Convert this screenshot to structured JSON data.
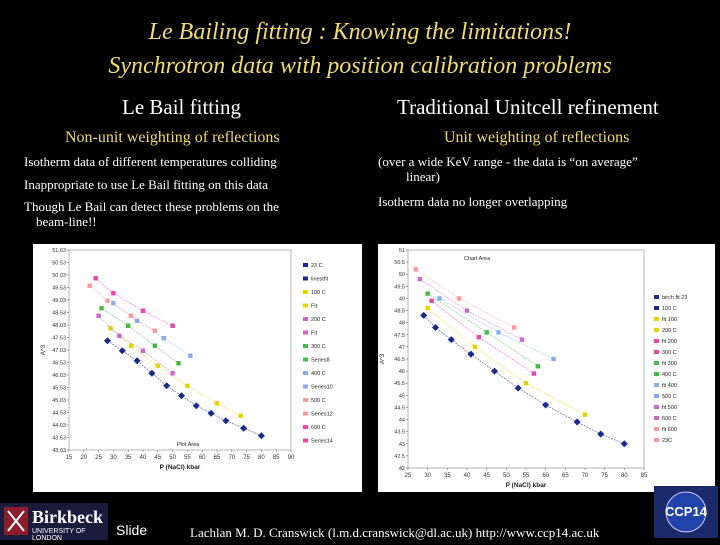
{
  "slide": {
    "title_line1": "Le Bailing fitting : Knowing the limitations!",
    "title_line2": "Synchrotron data with position calibration problems"
  },
  "left": {
    "heading": "Le Bail fitting",
    "subheading": "Non-unit weighting of reflections",
    "bullets": [
      "Isotherm data of different temperatures colliding",
      "Inappropriate to use Le Bail fitting on this data",
      "Though Le Bail can detect these problems on the",
      "beam-line!!"
    ]
  },
  "right": {
    "heading": "Traditional Unitcell refinement",
    "subheading": "Unit weighting of reflections",
    "bullets": [
      "(over a wide KeV range - the data is “on average”",
      "linear)",
      "Isotherm data no longer overlapping"
    ]
  },
  "chart_data": [
    {
      "type": "scatter",
      "xlabel": "P (NaCl) kbar",
      "ylabel": "A^3",
      "xlim": [
        15,
        90
      ],
      "ylim": [
        43.03,
        51.03
      ],
      "x_ticks": [
        "15",
        "20",
        "25",
        "30",
        "35",
        "40",
        "45",
        "50",
        "55",
        "60",
        "65",
        "70",
        "75",
        "80",
        "85",
        "90"
      ],
      "y_ticks": [
        "51.03",
        "50.53",
        "50.03",
        "49.53",
        "49.03",
        "48.53",
        "48.03",
        "47.53",
        "47.03",
        "46.53",
        "46.03",
        "45.53",
        "45.03",
        "44.53",
        "44.03",
        "43.53",
        "43.03"
      ],
      "legend": [
        "23 C",
        "linestfit",
        "100 C",
        "Fit",
        "200 C",
        "Fit",
        "300 C",
        "Series8",
        "400 C",
        "Series10",
        "500 C",
        "Series12",
        "600 C",
        "Series14"
      ],
      "legend_placement": "right",
      "annotation": "Plot Area",
      "series": [
        {
          "name": "23 C",
          "color": "#1a2a8a",
          "values": [
            [
              28,
              47.4
            ],
            [
              33,
              47.0
            ],
            [
              38,
              46.6
            ],
            [
              43,
              46.1
            ],
            [
              48,
              45.6
            ],
            [
              53,
              45.2
            ],
            [
              58,
              44.8
            ],
            [
              63,
              44.5
            ],
            [
              68,
              44.2
            ],
            [
              74,
              43.9
            ],
            [
              80,
              43.6
            ]
          ]
        },
        {
          "name": "100 C",
          "color": "#e8d200",
          "values": [
            [
              29,
              47.9
            ],
            [
              36,
              47.2
            ],
            [
              45,
              46.4
            ],
            [
              55,
              45.6
            ],
            [
              65,
              44.9
            ],
            [
              73,
              44.4
            ]
          ]
        },
        {
          "name": "200 C",
          "color": "#cc66cc",
          "values": [
            [
              25,
              48.4
            ],
            [
              32,
              47.6
            ],
            [
              40,
              47.0
            ],
            [
              50,
              46.1
            ]
          ]
        },
        {
          "name": "300 C",
          "color": "#44bb44",
          "values": [
            [
              26,
              48.7
            ],
            [
              35,
              48.0
            ],
            [
              44,
              47.2
            ],
            [
              52,
              46.5
            ]
          ]
        },
        {
          "name": "400 C",
          "color": "#88aaee",
          "values": [
            [
              30,
              48.9
            ],
            [
              38,
              48.2
            ],
            [
              47,
              47.5
            ],
            [
              56,
              46.8
            ]
          ]
        },
        {
          "name": "500 C",
          "color": "#ff9999",
          "values": [
            [
              22,
              49.6
            ],
            [
              28,
              49.0
            ],
            [
              36,
              48.4
            ],
            [
              44,
              47.8
            ]
          ]
        },
        {
          "name": "600 C",
          "color": "#ee44aa",
          "values": [
            [
              24,
              49.9
            ],
            [
              30,
              49.3
            ],
            [
              40,
              48.6
            ],
            [
              50,
              48.0
            ]
          ]
        }
      ]
    },
    {
      "type": "scatter",
      "xlabel": "P (NaCl) kbar",
      "ylabel": "A^3",
      "xlim": [
        25,
        85
      ],
      "ylim": [
        42,
        51
      ],
      "x_ticks": [
        "25",
        "30",
        "35",
        "40",
        "45",
        "50",
        "55",
        "60",
        "65",
        "70",
        "75",
        "80",
        "85"
      ],
      "y_ticks": [
        "51",
        "50.5",
        "50",
        "49.5",
        "49",
        "48.5",
        "48",
        "47.5",
        "47",
        "46.5",
        "46",
        "45.5",
        "45",
        "44.5",
        "44",
        "43.5",
        "43",
        "42.5",
        "42"
      ],
      "legend": [
        "birch fit 23",
        "100 C",
        "fit 100",
        "200 C",
        "fit 200",
        "300 C",
        "fit 300",
        "400 C",
        "fit 400",
        "500 C",
        "fit 500",
        "600 C",
        "fit 600",
        "23C"
      ],
      "legend_placement": "right",
      "annotation": "Chart Area",
      "series": [
        {
          "name": "23C",
          "color": "#1a2a8a",
          "values": [
            [
              29,
              48.3
            ],
            [
              32,
              47.8
            ],
            [
              36,
              47.3
            ],
            [
              41,
              46.7
            ],
            [
              47,
              46.0
            ],
            [
              53,
              45.3
            ],
            [
              60,
              44.6
            ],
            [
              68,
              43.9
            ],
            [
              74,
              43.4
            ],
            [
              80,
              43.0
            ]
          ]
        },
        {
          "name": "100 C",
          "color": "#e8d200",
          "values": [
            [
              30,
              48.6
            ],
            [
              42,
              47.0
            ],
            [
              55,
              45.5
            ],
            [
              70,
              44.2
            ]
          ]
        },
        {
          "name": "200 C",
          "color": "#ee44aa",
          "values": [
            [
              31,
              48.9
            ],
            [
              43,
              47.4
            ],
            [
              57,
              45.9
            ]
          ]
        },
        {
          "name": "300 C",
          "color": "#44bb44",
          "values": [
            [
              30,
              49.2
            ],
            [
              45,
              47.6
            ],
            [
              58,
              46.2
            ]
          ]
        },
        {
          "name": "400 C",
          "color": "#88aaee",
          "values": [
            [
              33,
              49.0
            ],
            [
              48,
              47.6
            ],
            [
              62,
              46.5
            ]
          ]
        },
        {
          "name": "500 C",
          "color": "#cc66cc",
          "values": [
            [
              28,
              49.8
            ],
            [
              40,
              48.5
            ],
            [
              54,
              47.3
            ]
          ]
        },
        {
          "name": "600 C",
          "color": "#ff9999",
          "values": [
            [
              27,
              50.2
            ],
            [
              38,
              49.0
            ],
            [
              52,
              47.8
            ]
          ]
        }
      ]
    }
  ],
  "footer": {
    "institution": "Birkbeck",
    "institution_sub": "UNIVERSITY OF LONDON",
    "slide_label": "Slide",
    "credit": "Lachlan M. D. Cranswick (l.m.d.cranswick@dl.ac.uk) http://www.ccp14.ac.uk",
    "logo_text": "CCP14"
  }
}
